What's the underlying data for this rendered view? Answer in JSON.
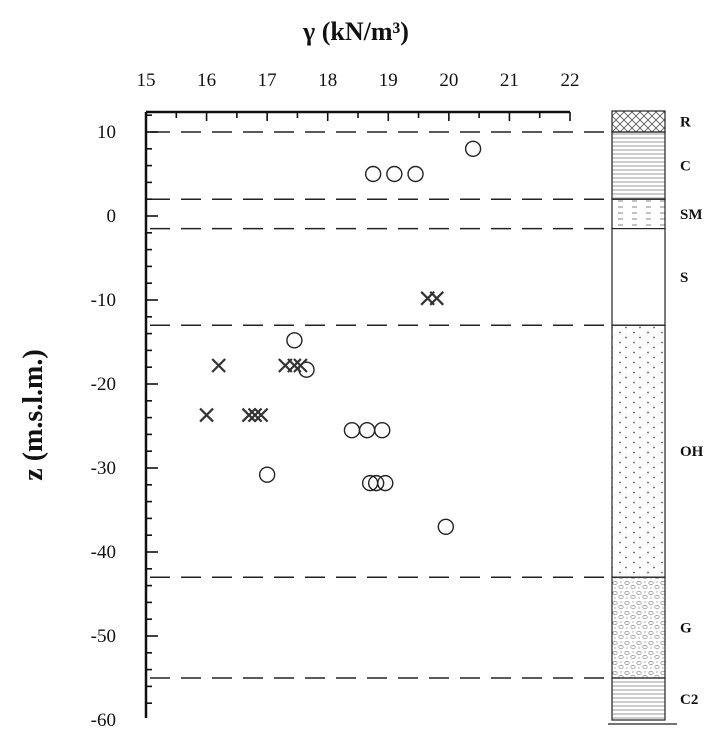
{
  "chart_data": {
    "type": "scatter",
    "xlabel": "γ (kN/m³)",
    "ylabel": "z (m.s.l.m.)",
    "xlim": [
      15,
      22
    ],
    "ylim": [
      -60,
      12.5
    ],
    "x_ticks": [
      15,
      16,
      17,
      18,
      19,
      20,
      21,
      22
    ],
    "y_ticks": [
      10,
      0,
      -10,
      -20,
      -30,
      -40,
      -50,
      -60
    ],
    "x_axis_position": "top",
    "grid": false,
    "series": [
      {
        "marker": "circle",
        "points": [
          {
            "x": 20.4,
            "y": 8
          },
          {
            "x": 18.75,
            "y": 5
          },
          {
            "x": 19.1,
            "y": 5
          },
          {
            "x": 19.45,
            "y": 5
          },
          {
            "x": 17.45,
            "y": -14.8
          },
          {
            "x": 17.65,
            "y": -18.3
          },
          {
            "x": 18.4,
            "y": -25.5
          },
          {
            "x": 18.65,
            "y": -25.5
          },
          {
            "x": 18.9,
            "y": -25.5
          },
          {
            "x": 18.7,
            "y": -31.8
          },
          {
            "x": 18.8,
            "y": -31.8
          },
          {
            "x": 18.95,
            "y": -31.8
          },
          {
            "x": 17.0,
            "y": -30.8
          },
          {
            "x": 19.95,
            "y": -37
          }
        ]
      },
      {
        "marker": "cross",
        "points": [
          {
            "x": 19.65,
            "y": -9.8
          },
          {
            "x": 19.8,
            "y": -9.8
          },
          {
            "x": 16.2,
            "y": -17.8
          },
          {
            "x": 17.3,
            "y": -17.8
          },
          {
            "x": 17.45,
            "y": -17.8
          },
          {
            "x": 17.55,
            "y": -17.8
          },
          {
            "x": 16.0,
            "y": -23.7
          },
          {
            "x": 16.7,
            "y": -23.7
          },
          {
            "x": 16.8,
            "y": -23.7
          },
          {
            "x": 16.9,
            "y": -23.7
          }
        ]
      }
    ],
    "layer_boundaries": [
      10,
      2,
      -1.5,
      -13,
      -43,
      -55
    ],
    "stratigraphy": [
      {
        "label": "R",
        "top": 12.5,
        "bottom": 10,
        "pattern": "crosshatch"
      },
      {
        "label": "C",
        "top": 10,
        "bottom": 2,
        "pattern": "horizontal-lines"
      },
      {
        "label": "SM",
        "top": 2,
        "bottom": -1.5,
        "pattern": "dashes"
      },
      {
        "label": "S",
        "top": -1.5,
        "bottom": -13,
        "pattern": "blank"
      },
      {
        "label": "OH",
        "top": -13,
        "bottom": -43,
        "pattern": "dots"
      },
      {
        "label": "G",
        "top": -43,
        "bottom": -55,
        "pattern": "gravel"
      },
      {
        "label": "C2",
        "top": -55,
        "bottom": -60,
        "pattern": "horizontal-lines"
      }
    ]
  }
}
